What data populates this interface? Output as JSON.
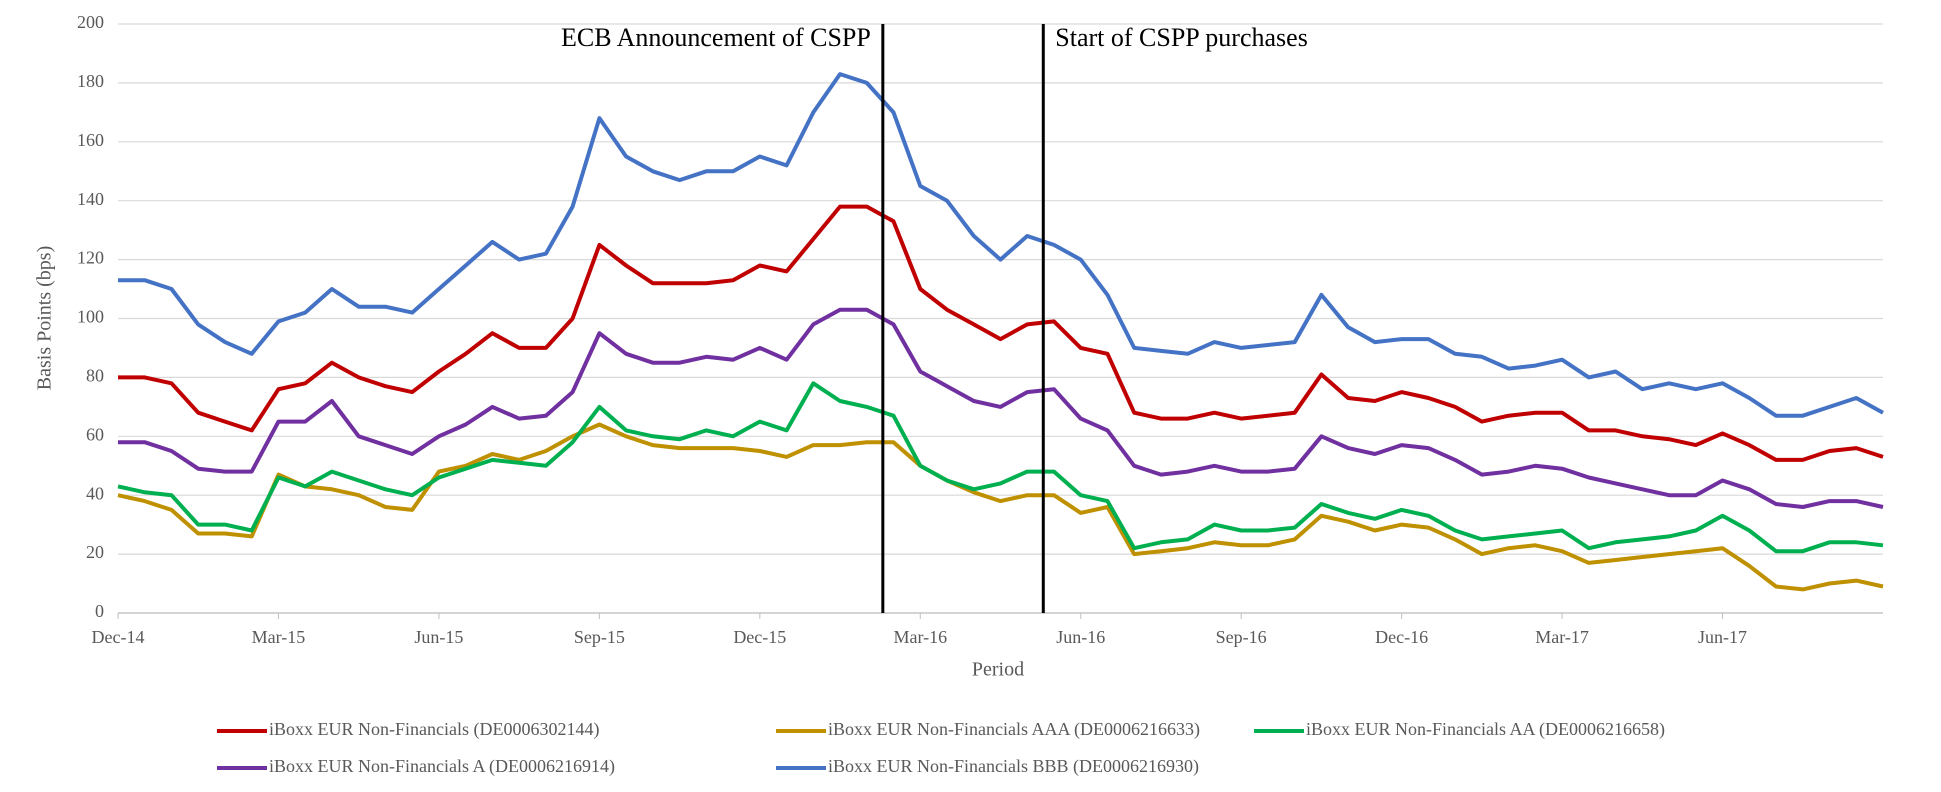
{
  "chart_data": {
    "type": "line",
    "xlabel": "Period",
    "ylabel": "Basis Points (bps)",
    "categories": [
      "Dec-14",
      null,
      null,
      null,
      null,
      null,
      "Mar-15",
      null,
      null,
      null,
      null,
      null,
      "Jun-15",
      null,
      null,
      null,
      null,
      null,
      "Sep-15",
      null,
      null,
      null,
      null,
      null,
      "Dec-15",
      null,
      null,
      null,
      null,
      null,
      "Mar-16",
      null,
      null,
      null,
      null,
      null,
      "Jun-16",
      null,
      null,
      null,
      null,
      null,
      "Sep-16",
      null,
      null,
      null,
      null,
      null,
      "Dec-16",
      null,
      null,
      null,
      null,
      null,
      "Mar-17",
      null,
      null,
      null,
      null,
      null,
      "Jun-17",
      null,
      null,
      null,
      null,
      null,
      null
    ],
    "series": [
      {
        "name": "iBoxx EUR Non-Financials (DE0006302144)",
        "color": "#c00000",
        "values": [
          80,
          80,
          78,
          68,
          65,
          62,
          76,
          78,
          85,
          80,
          77,
          75,
          82,
          88,
          95,
          90,
          90,
          100,
          125,
          118,
          112,
          112,
          112,
          113,
          118,
          116,
          127,
          138,
          138,
          133,
          110,
          103,
          98,
          93,
          98,
          99,
          90,
          88,
          68,
          66,
          66,
          68,
          66,
          67,
          68,
          81,
          73,
          72,
          75,
          73,
          70,
          65,
          67,
          68,
          68,
          62,
          62,
          60,
          59,
          57,
          61,
          57,
          52,
          52,
          55,
          56,
          53
        ]
      },
      {
        "name": "iBoxx EUR Non-Financials AAA (DE0006216633)",
        "color": "#bf9000",
        "values": [
          40,
          38,
          35,
          27,
          27,
          26,
          47,
          43,
          42,
          40,
          36,
          35,
          48,
          50,
          54,
          52,
          55,
          60,
          64,
          60,
          57,
          56,
          56,
          56,
          55,
          53,
          57,
          57,
          58,
          58,
          50,
          45,
          41,
          38,
          40,
          40,
          34,
          36,
          20,
          21,
          22,
          24,
          23,
          23,
          25,
          33,
          31,
          28,
          30,
          29,
          25,
          20,
          22,
          23,
          21,
          17,
          18,
          19,
          20,
          21,
          22,
          16,
          9,
          8,
          10,
          11,
          9
        ]
      },
      {
        "name": "iBoxx EUR Non-Financials AA (DE0006216658)",
        "color": "#00b050",
        "values": [
          43,
          41,
          40,
          30,
          30,
          28,
          46,
          43,
          48,
          45,
          42,
          40,
          46,
          49,
          52,
          51,
          50,
          58,
          70,
          62,
          60,
          59,
          62,
          60,
          65,
          62,
          78,
          72,
          70,
          67,
          50,
          45,
          42,
          44,
          48,
          48,
          40,
          38,
          22,
          24,
          25,
          30,
          28,
          28,
          29,
          37,
          34,
          32,
          35,
          33,
          28,
          25,
          26,
          27,
          28,
          22,
          24,
          25,
          26,
          28,
          33,
          28,
          21,
          21,
          24,
          24,
          23
        ]
      },
      {
        "name": "iBoxx EUR Non-Financials A (DE0006216914)",
        "color": "#7030a0",
        "values": [
          58,
          58,
          55,
          49,
          48,
          48,
          65,
          65,
          72,
          60,
          57,
          54,
          60,
          64,
          70,
          66,
          67,
          75,
          95,
          88,
          85,
          85,
          87,
          86,
          90,
          86,
          98,
          103,
          103,
          98,
          82,
          77,
          72,
          70,
          75,
          76,
          66,
          62,
          50,
          47,
          48,
          50,
          48,
          48,
          49,
          60,
          56,
          54,
          57,
          56,
          52,
          47,
          48,
          50,
          49,
          46,
          44,
          42,
          40,
          40,
          45,
          42,
          37,
          36,
          38,
          38,
          36
        ]
      },
      {
        "name": "iBoxx EUR Non-Financials BBB (DE0006216930)",
        "color": "#4472c4",
        "values": [
          113,
          113,
          110,
          98,
          92,
          88,
          99,
          102,
          110,
          104,
          104,
          102,
          110,
          118,
          126,
          120,
          122,
          138,
          168,
          155,
          150,
          147,
          150,
          150,
          155,
          152,
          170,
          183,
          180,
          170,
          145,
          140,
          128,
          120,
          128,
          125,
          120,
          108,
          90,
          89,
          88,
          92,
          90,
          91,
          92,
          108,
          97,
          92,
          93,
          93,
          88,
          87,
          83,
          84,
          86,
          80,
          82,
          76,
          78,
          76,
          78,
          73,
          67,
          67,
          70,
          73,
          68
        ]
      }
    ],
    "annotations": [
      {
        "text": "ECB Announcement of CSPP",
        "x": 28.6
      },
      {
        "text": "Start of CSPP purchases",
        "x": 34.6
      }
    ],
    "ylim": [
      0,
      200
    ],
    "yticks": [
      0,
      20,
      40,
      60,
      80,
      100,
      120,
      140,
      160,
      180,
      200
    ],
    "grid": true
  }
}
